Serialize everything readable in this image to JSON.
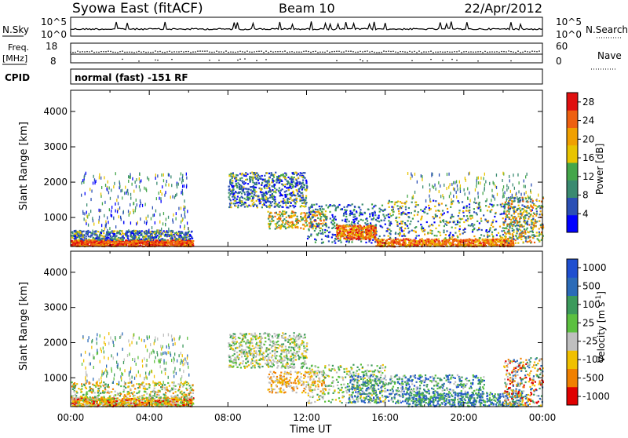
{
  "header": {
    "title": "Syowa East (fitACF)",
    "beam": "Beam 10",
    "date": "22/Apr/2012"
  },
  "noise_panel": {
    "left_label": "N.Sky",
    "right_label": "N.Search",
    "left_ticks": [
      "10^5",
      "10^0"
    ],
    "right_ticks": [
      "10^5",
      "10^0"
    ]
  },
  "freq_panel": {
    "left_label_1": "Freq.",
    "left_label_2": "[MHz]",
    "right_label": "Nave",
    "left_ticks": [
      "18",
      "8"
    ],
    "right_ticks": [
      "60",
      "0"
    ]
  },
  "cpid_panel": {
    "label": "CPID",
    "text": "normal (fast) -151 RF"
  },
  "x_axis": {
    "label": "Time UT",
    "ticks": [
      "00:00",
      "04:00",
      "08:00",
      "12:00",
      "16:00",
      "20:00",
      "00:00"
    ]
  },
  "colors": {
    "power_scale": [
      "#0000ff",
      "#2b4fb5",
      "#3a8a70",
      "#44a64a",
      "#e8c400",
      "#f0a000",
      "#ee6010",
      "#e01010"
    ],
    "velocity_scale": [
      "#1f4fd0",
      "#2b6bb8",
      "#3c9a5c",
      "#5cc040",
      "#bfbfbf",
      "#f0c000",
      "#f08000",
      "#e00000"
    ]
  },
  "chart_data": [
    {
      "type": "heatmap",
      "title": "Power",
      "ylabel": "Slant Range [km]",
      "xlabel": "",
      "ylim": [
        180,
        4600
      ],
      "y_ticks": [
        "1000",
        "2000",
        "3000",
        "4000"
      ],
      "colorbar_label": "Power [dB]",
      "colorbar_ticks": [
        "4",
        "8",
        "12",
        "16",
        "20",
        "24",
        "28"
      ],
      "colorbar_range": [
        0,
        30
      ]
    },
    {
      "type": "heatmap",
      "title": "Velocity",
      "ylabel": "Slant Range [km]",
      "xlabel": "Time UT",
      "ylim": [
        180,
        4600
      ],
      "y_ticks": [
        "1000",
        "2000",
        "3000",
        "4000"
      ],
      "colorbar_label": "Velocity [m s^-1]",
      "colorbar_ticks": [
        "1000",
        "500",
        "100",
        "25",
        "-25",
        "-100",
        "-500",
        "-1000"
      ],
      "colorbar_range": [
        -1000,
        1000
      ]
    }
  ]
}
